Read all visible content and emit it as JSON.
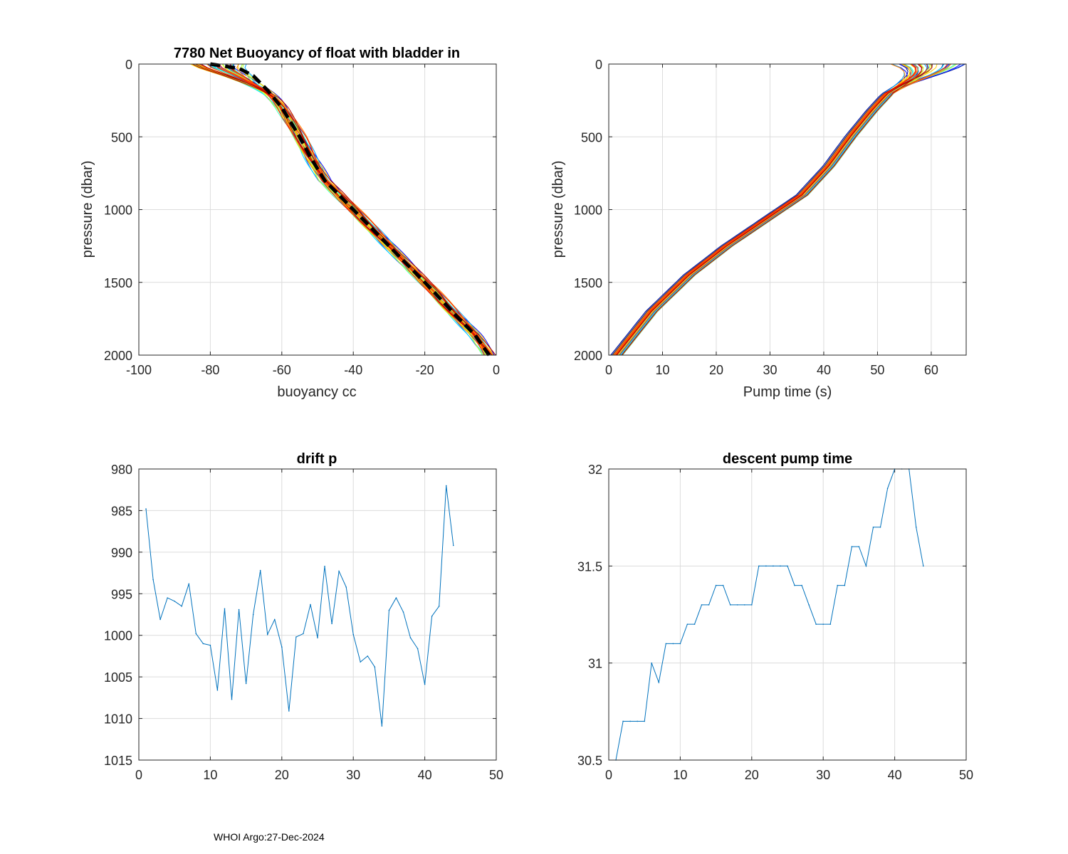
{
  "footer": "WHOI Argo:27-Dec-2024",
  "colors": {
    "axis": "#262626",
    "grid": "#dcdcdc",
    "series": "#0072BD",
    "mean": "#000000",
    "profile_palette": [
      "#00008f",
      "#0000ff",
      "#1e5cff",
      "#00a0ff",
      "#00e5ff",
      "#40ffbf",
      "#9fff60",
      "#e6ff1a",
      "#ffd400",
      "#ff8000",
      "#ff2000",
      "#b00000"
    ]
  },
  "chart_data": [
    {
      "id": "buoyancy",
      "type": "line",
      "title": "7780 Net Buoyancy of float with bladder in",
      "xlabel": "buoyancy cc",
      "ylabel": "pressure (dbar)",
      "xlim": [
        -100,
        0
      ],
      "ylim": [
        0,
        2000
      ],
      "y_reversed": true,
      "grid": true,
      "xticks": [
        "-100",
        "-80",
        "-60",
        "-40",
        "-20",
        "0"
      ],
      "yticks": [
        "0",
        "500",
        "1000",
        "1500",
        "2000"
      ],
      "mean_profile": {
        "name": "mean",
        "x": [
          -80,
          -72,
          -68,
          -64,
          -60,
          -55,
          -52,
          -48,
          -42,
          -36,
          -30,
          -24,
          -18,
          -12,
          -6,
          -2
        ],
        "y": [
          0,
          30,
          80,
          180,
          300,
          500,
          640,
          800,
          950,
          1100,
          1250,
          1400,
          1550,
          1710,
          1860,
          2000
        ]
      },
      "profiles_note": "ensemble of individual profiles colored by cycle (jet colormap), spread near surface of about -86 to -70 cc"
    },
    {
      "id": "pumptime",
      "type": "line",
      "title": "",
      "xlabel": "Pump time (s)",
      "ylabel": "pressure (dbar)",
      "xlim": [
        0,
        66.5
      ],
      "ylim": [
        0,
        2000
      ],
      "y_reversed": true,
      "grid": true,
      "xticks": [
        "0",
        "10",
        "20",
        "30",
        "40",
        "50",
        "60"
      ],
      "yticks": [
        "0",
        "500",
        "1000",
        "1500",
        "2000"
      ],
      "mean_profile": {
        "name": "mean",
        "x": [
          1.5,
          8,
          15,
          22,
          30,
          36,
          41,
          45,
          49,
          52,
          55,
          58,
          62
        ],
        "y": [
          2000,
          1700,
          1450,
          1250,
          1050,
          900,
          700,
          500,
          320,
          200,
          120,
          60,
          0
        ]
      },
      "profiles_note": "ensemble of individual profiles colored by cycle; surface end spreads from about 52 to 66.5 s"
    },
    {
      "id": "driftp",
      "type": "line",
      "title": "drift p",
      "xlabel": "",
      "ylabel": "",
      "xlim": [
        0,
        50
      ],
      "ylim": [
        980,
        1015
      ],
      "y_reversed": true,
      "grid": true,
      "xticks": [
        "0",
        "10",
        "20",
        "30",
        "40",
        "50"
      ],
      "yticks": [
        "980",
        "985",
        "990",
        "995",
        "1000",
        "1005",
        "1010",
        "1015"
      ],
      "series": [
        {
          "name": "drift p",
          "x": [
            1,
            2,
            3,
            4,
            5,
            6,
            7,
            8,
            9,
            10,
            11,
            12,
            13,
            14,
            15,
            16,
            17,
            18,
            19,
            20,
            21,
            22,
            23,
            24,
            25,
            26,
            27,
            28,
            29,
            30,
            31,
            32,
            33,
            34,
            35,
            36,
            37,
            38,
            39,
            40,
            41,
            42,
            43,
            44
          ],
          "values": [
            984.8,
            993.3,
            998.1,
            995.5,
            995.9,
            996.5,
            993.8,
            999.8,
            1001.0,
            1001.2,
            1006.6,
            996.8,
            1007.7,
            996.9,
            1005.8,
            997.5,
            992.2,
            999.9,
            998.1,
            1001.4,
            1009.1,
            1000.2,
            999.8,
            996.3,
            1000.3,
            991.7,
            998.6,
            992.3,
            994.2,
            999.9,
            1003.2,
            1002.5,
            1003.8,
            1010.9,
            997.0,
            995.5,
            997.2,
            1000.3,
            1001.6,
            1005.9,
            997.7,
            996.5,
            982.0,
            989.2
          ]
        }
      ]
    },
    {
      "id": "descentpump",
      "type": "line",
      "title": "descent pump time",
      "xlabel": "",
      "ylabel": "",
      "xlim": [
        0,
        50
      ],
      "ylim": [
        30.5,
        32
      ],
      "y_reversed": false,
      "grid": true,
      "xticks": [
        "0",
        "10",
        "20",
        "30",
        "40",
        "50"
      ],
      "yticks": [
        "30.5",
        "31",
        "31.5",
        "32"
      ],
      "series": [
        {
          "name": "descent pump time",
          "x": [
            1,
            2,
            3,
            4,
            5,
            6,
            7,
            8,
            9,
            10,
            11,
            12,
            13,
            14,
            15,
            16,
            17,
            18,
            19,
            20,
            21,
            22,
            23,
            24,
            25,
            26,
            27,
            28,
            29,
            30,
            31,
            32,
            33,
            34,
            35,
            36,
            37,
            38,
            39,
            40,
            41,
            42,
            43,
            44
          ],
          "values": [
            30.5,
            30.7,
            30.7,
            30.7,
            30.7,
            31.0,
            30.9,
            31.1,
            31.1,
            31.1,
            31.2,
            31.2,
            31.3,
            31.3,
            31.4,
            31.4,
            31.3,
            31.3,
            31.3,
            31.3,
            31.5,
            31.5,
            31.5,
            31.5,
            31.5,
            31.4,
            31.4,
            31.3,
            31.2,
            31.2,
            31.2,
            31.4,
            31.4,
            31.6,
            31.6,
            31.5,
            31.7,
            31.7,
            31.9,
            32.0,
            32.0,
            32.0,
            31.7,
            31.5
          ]
        }
      ]
    }
  ]
}
